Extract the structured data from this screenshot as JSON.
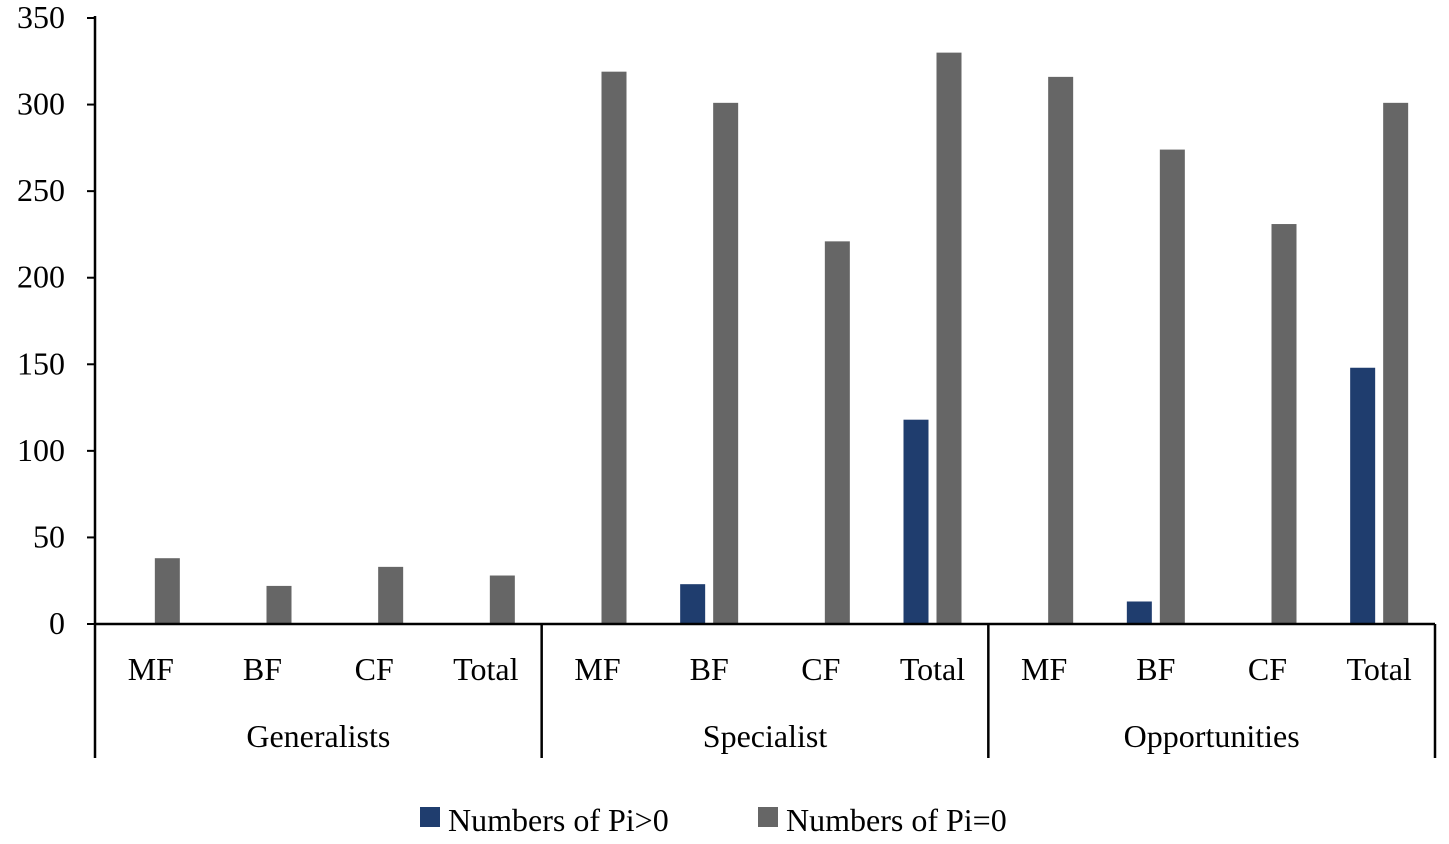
{
  "chart_data": {
    "type": "bar",
    "title": "",
    "xlabel": "",
    "ylabel": "",
    "ylim": [
      0,
      350
    ],
    "yticks": [
      0,
      50,
      100,
      150,
      200,
      250,
      300,
      350
    ],
    "grid": false,
    "legend_position": "bottom",
    "groups": [
      {
        "label": "Generalists",
        "categories": [
          "MF",
          "BF",
          "CF",
          "Total"
        ]
      },
      {
        "label": "Specialist",
        "categories": [
          "MF",
          "BF",
          "CF",
          "Total"
        ]
      },
      {
        "label": "Opportunities",
        "categories": [
          "MF",
          "BF",
          "CF",
          "Total"
        ]
      }
    ],
    "categories": [
      "MF",
      "BF",
      "CF",
      "Total",
      "MF",
      "BF",
      "CF",
      "Total",
      "MF",
      "BF",
      "CF",
      "Total"
    ],
    "series": [
      {
        "name": "Numbers of Pi>0",
        "color": "#1f3d6e",
        "values": [
          0,
          0,
          0,
          0,
          0,
          23,
          0,
          118,
          0,
          13,
          0,
          148
        ]
      },
      {
        "name": "Numbers of Pi=0",
        "color": "#666666",
        "values": [
          38,
          22,
          33,
          28,
          319,
          301,
          221,
          330,
          316,
          274,
          231,
          301
        ]
      }
    ]
  }
}
